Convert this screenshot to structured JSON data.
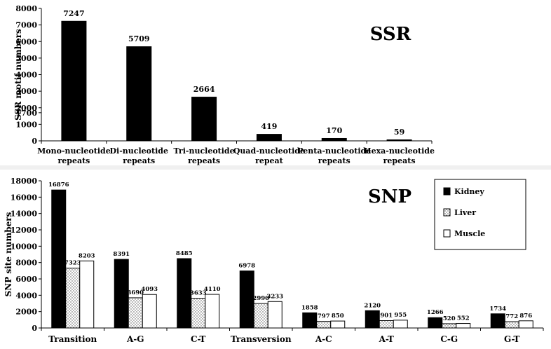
{
  "chart_data": [
    {
      "type": "bar",
      "title": "SSR",
      "xlabel": "",
      "ylabel": "SSR motif numbers",
      "ylim": [
        0,
        8000
      ],
      "yticks": [
        0,
        1000,
        1700,
        2000,
        3000,
        4000,
        5000,
        6000,
        7000,
        8000
      ],
      "categories": [
        [
          "Mono-nucleotide",
          "repeats"
        ],
        [
          "Di-nucleotide",
          "repeats"
        ],
        [
          "Tri-nucleotide",
          "repeats"
        ],
        [
          "Quad-nucleotide",
          "repeat"
        ],
        [
          "Penta-nucleotide",
          "repeats"
        ],
        [
          "Hexa-nucleotide",
          "repeats"
        ]
      ],
      "values": [
        7247,
        5709,
        2664,
        419,
        170,
        59
      ],
      "grid": false,
      "legend": null
    },
    {
      "type": "bar",
      "title": "SNP",
      "xlabel": "",
      "ylabel": "SNP site numbers",
      "ylim": [
        0,
        18000
      ],
      "yticks": [
        0,
        2000,
        4000,
        6000,
        8000,
        10000,
        12000,
        14000,
        16000,
        18000
      ],
      "categories": [
        "Transition",
        "A-G",
        "C-T",
        "Transversion",
        "A-C",
        "A-T",
        "C-G",
        "G-T"
      ],
      "series": [
        {
          "name": "Kidney",
          "fill": "solid-black",
          "values": [
            16876,
            8391,
            8485,
            6978,
            1858,
            2120,
            1266,
            1734
          ]
        },
        {
          "name": "Liver",
          "fill": "dotted",
          "values": [
            7323,
            3690,
            3633,
            2990,
            797,
            901,
            520,
            772
          ]
        },
        {
          "name": "Muscle",
          "fill": "white",
          "values": [
            8203,
            4093,
            4110,
            3233,
            850,
            955,
            552,
            876
          ]
        }
      ],
      "value_labels": [
        [
          "16876",
          "7323",
          "8203"
        ],
        [
          "8391",
          "3690",
          "4093"
        ],
        [
          "8485",
          "3633",
          "4110"
        ],
        [
          "6978",
          "2990",
          "3233"
        ],
        [
          "1858",
          "797",
          "850"
        ],
        [
          "2120",
          "901",
          "955"
        ],
        [
          "1266",
          "520",
          "552"
        ],
        [
          "1734",
          "772",
          "876"
        ]
      ],
      "grid": false,
      "legend": "top-right"
    }
  ],
  "colors": {
    "bar_black": "#000000",
    "axis": "#000000",
    "background": "#ffffff"
  }
}
